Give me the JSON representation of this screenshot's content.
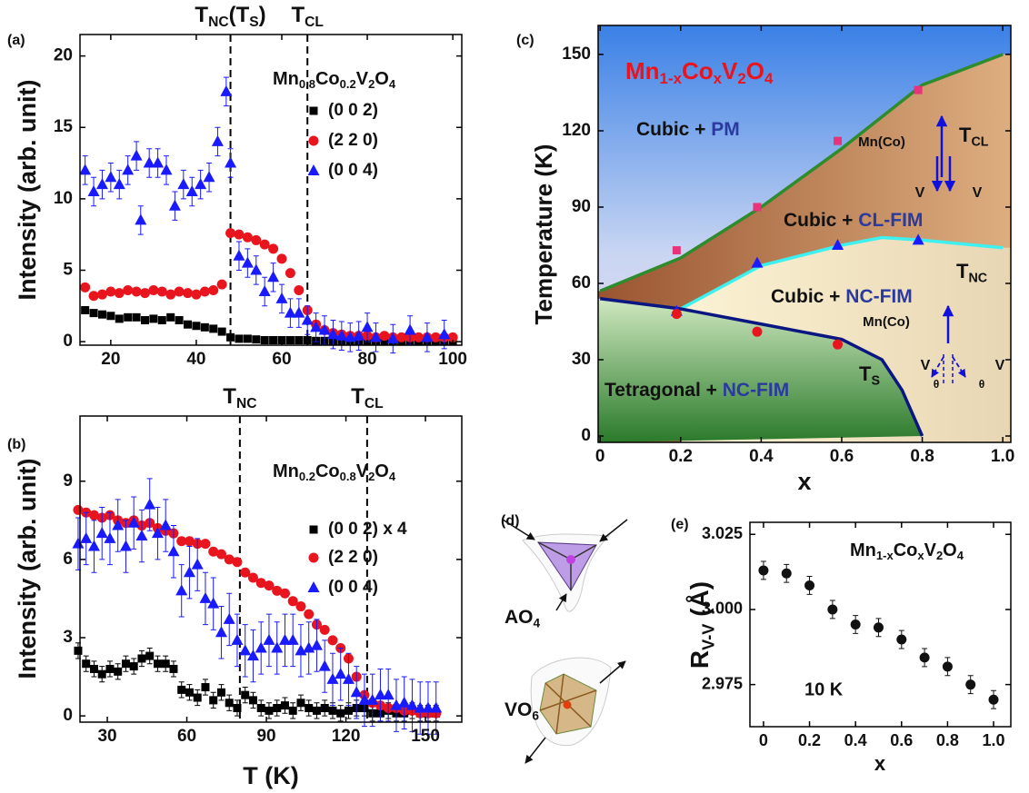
{
  "chart_data": [
    {
      "type": "scatter",
      "panel": "(a)",
      "xlim": [
        12.8,
        102.1
      ],
      "ylim": [
        -0.25,
        21.5
      ],
      "xticks": [
        20,
        40,
        60,
        80,
        100
      ],
      "yticks": [
        0,
        5,
        10,
        15,
        20
      ],
      "ylabel": "Intensity (arb. unit)",
      "legend_title": [
        "Mn",
        "0.8",
        "Co",
        "0.2",
        "V",
        "2",
        "O",
        "4"
      ],
      "vlines": [
        {
          "x": 48,
          "label": [
            "T",
            "NC",
            "(T",
            "S",
            ")"
          ]
        },
        {
          "x": 66,
          "label": [
            "T",
            "CL"
          ]
        }
      ],
      "series": [
        {
          "name": "(0 0 2)",
          "color": "#000000",
          "marker": "square",
          "x": [
            14,
            16,
            18,
            20,
            22,
            24,
            26,
            28,
            30,
            32,
            34,
            36,
            38,
            40,
            42,
            44,
            46,
            48,
            50,
            52,
            54,
            56,
            58,
            60,
            62,
            64,
            66,
            68,
            70,
            72,
            74,
            76,
            78,
            80,
            82,
            84,
            86,
            88,
            90,
            92,
            94,
            96,
            98,
            100
          ],
          "values": [
            2.2,
            2.0,
            1.9,
            1.8,
            1.6,
            1.7,
            1.7,
            1.5,
            1.6,
            1.5,
            1.7,
            1.5,
            1.2,
            1.1,
            1.0,
            0.9,
            0.7,
            0.3,
            0.2,
            0.2,
            0.15,
            0.1,
            0.1,
            0.1,
            0.1,
            0.1,
            0.1,
            0.05,
            0.05,
            0.05,
            0.05,
            0.05,
            0.05,
            0.05,
            0.05,
            0.05,
            0.05,
            0.05,
            0.05,
            0.05,
            0.05,
            0.05,
            0.05,
            0.05
          ]
        },
        {
          "name": "(2 2 0)",
          "color": "#e8141e",
          "marker": "circle",
          "x": [
            14,
            16,
            18,
            20,
            22,
            24,
            26,
            28,
            30,
            32,
            34,
            36,
            38,
            40,
            42,
            44,
            46,
            48,
            50,
            52,
            54,
            56,
            58,
            60,
            62,
            64,
            66,
            68,
            70,
            72,
            74,
            76,
            78,
            80,
            82,
            84,
            86,
            88,
            90,
            92,
            94,
            96,
            98,
            100
          ],
          "values": [
            3.8,
            3.2,
            3.3,
            3.5,
            3.4,
            3.6,
            3.5,
            3.4,
            3.6,
            3.5,
            3.3,
            3.5,
            3.4,
            3.3,
            3.5,
            3.6,
            4.0,
            7.6,
            7.5,
            7.3,
            7.1,
            6.8,
            6.5,
            5.8,
            4.8,
            3.6,
            2.2,
            1.2,
            0.8,
            0.6,
            0.5,
            0.4,
            0.4,
            0.4,
            0.3,
            0.4,
            0.3,
            0.3,
            0.3,
            0.3,
            0.3,
            0.3,
            0.3,
            0.3
          ]
        },
        {
          "name": "(0 0 4)",
          "color": "#1a1aff",
          "marker": "triangle",
          "x": [
            14,
            16,
            18,
            20,
            22,
            24,
            26,
            27,
            29,
            31,
            33,
            35,
            37,
            39,
            41,
            43,
            45,
            47,
            48,
            50,
            52,
            54,
            56,
            58,
            60,
            62,
            64,
            66,
            68,
            70,
            72,
            74,
            76,
            78,
            80,
            82,
            86,
            90,
            94,
            98
          ],
          "values": [
            12,
            10.5,
            11,
            11.5,
            11,
            12,
            13,
            8.5,
            12.5,
            12.5,
            12,
            9.5,
            11,
            10.5,
            11,
            11.5,
            14,
            17.5,
            12.5,
            6,
            5.5,
            5,
            3.5,
            4.5,
            3,
            2,
            2,
            1.5,
            1,
            0.8,
            0.5,
            0.4,
            0.3,
            0.4,
            1,
            0.3,
            0.2,
            0.8,
            0.3,
            0.5
          ],
          "errors": [
            1,
            1,
            1,
            1,
            1,
            1,
            1,
            1,
            1,
            1,
            1,
            1,
            1,
            1,
            1,
            1,
            1,
            1,
            1,
            1,
            1,
            1,
            1,
            1,
            1,
            1,
            1,
            1,
            1,
            1,
            1,
            1,
            1,
            1,
            1,
            1,
            1,
            1,
            1,
            1
          ]
        }
      ]
    },
    {
      "type": "scatter",
      "panel": "(b)",
      "xlim": [
        19.7,
        163.7
      ],
      "ylim": [
        -0.24,
        11.5
      ],
      "xticks": [
        30,
        60,
        90,
        120,
        150
      ],
      "yticks": [
        0,
        3,
        6,
        9
      ],
      "xlabel": "T (K)",
      "ylabel": "Intensity (arb. unit)",
      "legend_title": [
        "Mn",
        "0.2",
        "Co",
        "0.8",
        "V",
        "2",
        "O",
        "4"
      ],
      "vlines": [
        {
          "x": 80,
          "label": [
            "T",
            "NC"
          ]
        },
        {
          "x": 128,
          "label": [
            "T",
            "CL"
          ]
        }
      ],
      "series": [
        {
          "name": "(0 0 2) x 4",
          "color": "#000000",
          "marker": "square",
          "x": [
            19,
            22,
            25,
            28,
            31,
            34,
            37,
            40,
            43,
            46,
            49,
            52,
            55,
            58,
            61,
            64,
            67,
            70,
            73,
            76,
            79,
            82,
            85,
            88,
            91,
            94,
            97,
            100,
            103,
            106,
            109,
            112,
            115,
            118,
            121,
            124,
            127,
            130,
            133,
            136,
            139,
            142,
            145,
            148,
            151,
            154
          ],
          "values": [
            2.5,
            2.0,
            1.8,
            1.6,
            1.8,
            1.7,
            2.0,
            1.9,
            2.2,
            2.3,
            2.0,
            2.0,
            1.8,
            1.0,
            0.9,
            0.7,
            1.1,
            0.6,
            0.9,
            0.5,
            0.3,
            0.8,
            0.6,
            0.3,
            0.2,
            0.3,
            0.4,
            0.2,
            0.5,
            0.3,
            0.2,
            0.3,
            0.2,
            0.1,
            0.2,
            0.3,
            0.3,
            0.1,
            0.1,
            0.2,
            0.1,
            0.1,
            0.2,
            0.1,
            0.1,
            0.1
          ],
          "errors": [
            0.3,
            0.3,
            0.3,
            0.3,
            0.3,
            0.3,
            0.3,
            0.3,
            0.3,
            0.3,
            0.3,
            0.3,
            0.3,
            0.3,
            0.3,
            0.3,
            0.3,
            0.3,
            0.3,
            0.3,
            0.3,
            0.3,
            0.3,
            0.3,
            0.3,
            0.3,
            0.3,
            0.3,
            0.3,
            0.3,
            0.3,
            0.3,
            0.3,
            0.3,
            0.3,
            0.3,
            0.3,
            0.3,
            0.3,
            0.3,
            0.3,
            0.3,
            0.3,
            0.3,
            0.3,
            0.3
          ]
        },
        {
          "name": "(2 2 0)",
          "color": "#e8141e",
          "marker": "circle",
          "x": [
            19,
            22,
            25,
            28,
            31,
            34,
            37,
            40,
            43,
            46,
            49,
            52,
            55,
            58,
            61,
            64,
            67,
            70,
            73,
            76,
            79,
            82,
            85,
            88,
            91,
            94,
            97,
            100,
            103,
            106,
            109,
            112,
            115,
            118,
            121,
            124,
            127,
            130,
            133,
            136,
            139,
            142,
            145,
            148,
            151,
            154
          ],
          "values": [
            7.9,
            7.8,
            7.7,
            7.6,
            7.7,
            7.5,
            7.4,
            7.5,
            7.3,
            7.4,
            7.2,
            7.1,
            7.0,
            6.7,
            6.7,
            6.6,
            6.6,
            6.3,
            6.2,
            6.0,
            5.9,
            5.5,
            5.3,
            5.1,
            5.0,
            4.8,
            4.7,
            4.4,
            4.2,
            3.9,
            3.5,
            3.3,
            2.9,
            2.6,
            2.2,
            1.5,
            0.8,
            0.5,
            0.4,
            0.3,
            0.3,
            0.2,
            0.2,
            0.1,
            0.1,
            0.1
          ]
        },
        {
          "name": "(0 0 4)",
          "color": "#1a1aff",
          "marker": "triangle",
          "x": [
            19,
            22,
            25,
            28,
            31,
            34,
            37,
            40,
            43,
            46,
            49,
            52,
            55,
            58,
            61,
            64,
            67,
            70,
            73,
            76,
            79,
            82,
            85,
            88,
            91,
            94,
            97,
            100,
            103,
            106,
            109,
            112,
            115,
            118,
            121,
            124,
            127,
            130,
            133,
            136,
            139,
            142,
            145,
            148,
            151,
            154
          ],
          "values": [
            6.6,
            6.8,
            6.5,
            7.0,
            6.8,
            7.3,
            6.5,
            7.4,
            6.9,
            8.1,
            7.0,
            7.3,
            6.3,
            4.8,
            5.5,
            5.8,
            4.5,
            4.3,
            3.2,
            3.7,
            2.9,
            2.5,
            2.3,
            2.6,
            2.9,
            2.6,
            2.9,
            2.9,
            2.5,
            2.6,
            2.7,
            1.9,
            1.4,
            1.6,
            1.4,
            0.9,
            0.6,
            0.6,
            0.8,
            0.8,
            0.4,
            0.5,
            0.4,
            0.3,
            0.3,
            0.3
          ],
          "errors": [
            1,
            1,
            1,
            1,
            1,
            1,
            1,
            1,
            1,
            1,
            1,
            1,
            1,
            1,
            1,
            1,
            1,
            1,
            1,
            1,
            1,
            1,
            1,
            1,
            1,
            1,
            1,
            1,
            1,
            1,
            1,
            1,
            1,
            1,
            1,
            1,
            1,
            1,
            1,
            1,
            1,
            1,
            1,
            1,
            1,
            1
          ]
        }
      ]
    },
    {
      "type": "phase",
      "panel": "(c)",
      "title": [
        "Mn",
        "1-x",
        "Co",
        "x",
        "V",
        "2",
        "O",
        "4"
      ],
      "xlim": [
        -0.005,
        1.02
      ],
      "ylim": [
        -2.5,
        161.4
      ],
      "xticks": [
        0,
        0.2,
        0.4,
        0.6,
        0.8,
        {
          "value": 1,
          "label": "1.0"
        }
      ],
      "yticks": [
        0,
        30,
        60,
        90,
        120,
        150
      ],
      "xlabel": "x",
      "ylabel": "Temperature (K)",
      "region_labels": [
        [
          "Cubic + ",
          "PM"
        ],
        [
          "Cubic + ",
          "CL-FIM"
        ],
        [
          "Cubic + ",
          "NC-FIM"
        ],
        [
          "Tetragonal + ",
          "NC-FIM"
        ]
      ],
      "phase_labels": [
        [
          "T",
          "CL"
        ],
        [
          "T",
          "NC"
        ],
        [
          "T",
          "S"
        ]
      ],
      "spin_labels": [
        "Mn(Co)",
        "V",
        "V",
        "Mn(Co)",
        "V",
        "V",
        "θ",
        "θ"
      ],
      "series": [
        {
          "kind": "line",
          "color": "#2e8b2e",
          "x": [
            0,
            0.2,
            0.4,
            0.6,
            0.8,
            1
          ],
          "values": [
            57,
            70,
            90,
            113,
            138,
            150
          ]
        },
        {
          "kind": "line",
          "color": "#3ff0f0",
          "x": [
            0.2,
            0.4,
            0.6,
            0.7,
            0.8,
            1
          ],
          "values": [
            50,
            67,
            75,
            78,
            77,
            74
          ]
        },
        {
          "kind": "line",
          "color": "#0b1780",
          "x": [
            0,
            0.2,
            0.4,
            0.6,
            0.7,
            0.75,
            0.8
          ],
          "values": [
            54,
            50,
            44,
            38,
            30,
            18,
            0
          ]
        },
        {
          "marker": "square",
          "color": "#e8337a",
          "x": [
            0.19,
            0.39,
            0.59,
            0.79
          ],
          "values": [
            73,
            90,
            116,
            136
          ]
        },
        {
          "marker": "triangle",
          "color": "#1a1aff",
          "x": [
            0.19,
            0.39,
            0.59,
            0.79
          ],
          "values": [
            49,
            68,
            75,
            77
          ]
        },
        {
          "marker": "circle",
          "color": "#e8141e",
          "x": [
            0.19,
            0.39,
            0.59
          ],
          "values": [
            48,
            41,
            36
          ]
        }
      ]
    },
    {
      "type": "scatter",
      "panel": "(e)",
      "title": [
        "Mn",
        "1-x",
        "Co",
        "x",
        "V",
        "2",
        "O",
        "4"
      ],
      "note": "10 K",
      "xlim": [
        -0.059,
        1.075
      ],
      "ylim": [
        2.961,
        3.029
      ],
      "xticks": [
        0,
        0.2,
        0.4,
        0.6,
        0.8,
        {
          "value": 1,
          "label": "1.0"
        }
      ],
      "yticks": [
        2.975,
        {
          "value": 3,
          "label": "3.000"
        },
        3.025
      ],
      "xlabel": "x",
      "ylabel": [
        "R",
        "V-V",
        " (Å)"
      ],
      "series": [
        {
          "marker": "circle",
          "color": "#111111",
          "x": [
            0,
            0.1,
            0.2,
            0.3,
            0.4,
            0.5,
            0.6,
            0.7,
            0.8,
            0.9,
            1.0
          ],
          "values": [
            3.013,
            3.012,
            3.008,
            3.0,
            2.995,
            2.994,
            2.99,
            2.984,
            2.981,
            2.975,
            2.97
          ],
          "errors": [
            0.003,
            0.003,
            0.003,
            0.003,
            0.003,
            0.003,
            0.003,
            0.003,
            0.003,
            0.003,
            0.003
          ]
        }
      ]
    }
  ],
  "diagram": {
    "panel": "(d)",
    "labels": [
      [
        "AO",
        "4"
      ],
      [
        "VO",
        "6"
      ]
    ]
  }
}
